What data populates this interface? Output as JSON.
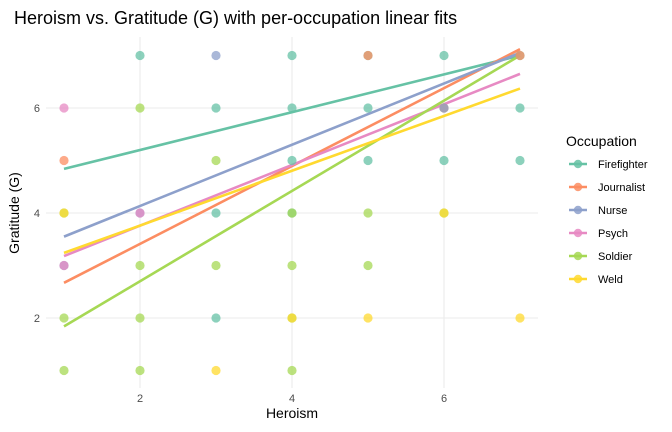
{
  "chart_data": {
    "type": "scatter",
    "title": "Heroism vs. Gratitude (G) with per-occupation linear fits",
    "xlabel": "Heroism",
    "ylabel": "Gratitude (G)",
    "xlim": [
      0.75,
      7.25
    ],
    "ylim": [
      0.7,
      7.3
    ],
    "xticks": [
      2,
      4,
      6
    ],
    "yticks": [
      2,
      4,
      6
    ],
    "grid": true,
    "legend": {
      "title": "Occupation",
      "position": "right",
      "entries": [
        "Firefighter",
        "Journalist",
        "Nurse",
        "Psych",
        "Soldier",
        "Weld"
      ]
    },
    "series": [
      {
        "name": "Firefighter",
        "color": "#66C2A5",
        "points": [
          [
            2,
            7
          ],
          [
            3,
            6
          ],
          [
            3,
            2
          ],
          [
            3,
            4
          ],
          [
            4,
            7
          ],
          [
            4,
            6
          ],
          [
            4,
            5
          ],
          [
            4,
            4
          ],
          [
            5,
            7
          ],
          [
            5,
            6
          ],
          [
            5,
            5
          ],
          [
            6,
            7
          ],
          [
            6,
            6
          ],
          [
            6,
            5
          ],
          [
            7,
            7
          ],
          [
            7,
            6
          ],
          [
            7,
            5
          ]
        ],
        "fit": {
          "x": [
            1,
            7
          ],
          "y": [
            4.84,
            7.0
          ]
        }
      },
      {
        "name": "Journalist",
        "color": "#FC8D62",
        "points": [
          [
            1,
            5
          ],
          [
            5,
            7
          ],
          [
            6,
            6
          ],
          [
            7,
            7
          ]
        ],
        "fit": {
          "x": [
            1,
            7
          ],
          "y": [
            2.67,
            7.12
          ]
        }
      },
      {
        "name": "Nurse",
        "color": "#8DA0CB",
        "points": [
          [
            3,
            7
          ],
          [
            1,
            3
          ],
          [
            2,
            4
          ],
          [
            6,
            6
          ]
        ],
        "fit": {
          "x": [
            1,
            7
          ],
          "y": [
            3.55,
            7.05
          ]
        }
      },
      {
        "name": "Psych",
        "color": "#E78AC3",
        "points": [
          [
            1,
            6
          ],
          [
            2,
            4
          ],
          [
            1,
            3
          ]
        ],
        "fit": {
          "x": [
            1,
            7
          ],
          "y": [
            3.18,
            6.65
          ]
        }
      },
      {
        "name": "Soldier",
        "color": "#A6D854",
        "points": [
          [
            1,
            4
          ],
          [
            1,
            2
          ],
          [
            1,
            1
          ],
          [
            2,
            6
          ],
          [
            2,
            3
          ],
          [
            2,
            2
          ],
          [
            2,
            1
          ],
          [
            3,
            5
          ],
          [
            3,
            3
          ],
          [
            4,
            4
          ],
          [
            4,
            3
          ],
          [
            4,
            2
          ],
          [
            4,
            1
          ],
          [
            5,
            4
          ],
          [
            5,
            3
          ],
          [
            6,
            4
          ]
        ],
        "fit": {
          "x": [
            1,
            7
          ],
          "y": [
            1.84,
            7.0
          ]
        }
      },
      {
        "name": "Weld",
        "color": "#FFD92F",
        "points": [
          [
            3,
            1
          ],
          [
            5,
            2
          ],
          [
            7,
            2
          ],
          [
            1,
            4
          ],
          [
            4,
            2
          ],
          [
            6,
            4
          ]
        ],
        "fit": {
          "x": [
            1,
            7
          ],
          "y": [
            3.24,
            6.37
          ]
        }
      }
    ]
  }
}
